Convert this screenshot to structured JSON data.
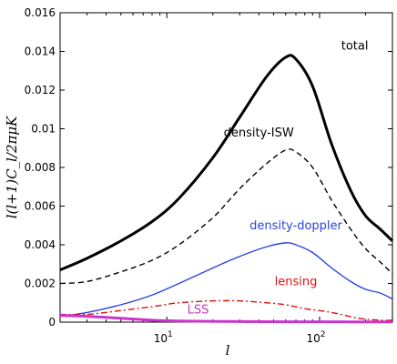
{
  "chart_data": {
    "type": "line",
    "xlabel": "l",
    "ylabel": "l(l+1)C_l/2πμK",
    "xscale": "log",
    "xlim": [
      2,
      300
    ],
    "ylim": [
      0,
      0.016
    ],
    "grid": false,
    "legend": "none",
    "y_ticks": [
      "0",
      "0.002",
      "0.004",
      "0.006",
      "0.008",
      "0.01",
      "0.012",
      "0.014",
      "0.016"
    ],
    "y_tick_values": [
      0,
      0.002,
      0.004,
      0.006,
      0.008,
      0.01,
      0.012,
      0.014,
      0.016
    ],
    "x_ticks": [
      {
        "value": 10,
        "base": "10",
        "exp": "1"
      },
      {
        "value": 100,
        "base": "10",
        "exp": "2"
      }
    ],
    "series": [
      {
        "name": "total",
        "color": "#000000",
        "style": "solid-thick",
        "x": [
          2,
          3,
          5,
          8,
          12,
          20,
          30,
          45,
          60,
          70,
          90,
          120,
          160,
          200,
          250,
          300
        ],
        "y": [
          0.0027,
          0.0033,
          0.0042,
          0.0052,
          0.0064,
          0.0085,
          0.0106,
          0.0127,
          0.0137,
          0.0136,
          0.0122,
          0.0092,
          0.0068,
          0.0055,
          0.0048,
          0.0042
        ]
      },
      {
        "name": "density-ISW",
        "color": "#000000",
        "style": "dashed",
        "x": [
          2,
          3,
          5,
          8,
          12,
          20,
          30,
          45,
          60,
          70,
          90,
          120,
          160,
          200,
          250,
          300
        ],
        "y": [
          0.002,
          0.0021,
          0.0026,
          0.0032,
          0.004,
          0.0054,
          0.0069,
          0.0082,
          0.0089,
          0.0088,
          0.008,
          0.0063,
          0.0048,
          0.0038,
          0.0031,
          0.0025
        ]
      },
      {
        "name": "density-doppler",
        "color": "#2a44e0",
        "style": "solid",
        "x": [
          2,
          3,
          5,
          8,
          12,
          20,
          30,
          45,
          60,
          70,
          90,
          120,
          160,
          200,
          250,
          300
        ],
        "y": [
          0.0003,
          0.0005,
          0.0009,
          0.0014,
          0.002,
          0.0028,
          0.0034,
          0.0039,
          0.0041,
          0.004,
          0.0036,
          0.0028,
          0.0021,
          0.0017,
          0.0015,
          0.0012
        ]
      },
      {
        "name": "lensing",
        "color": "#e01010",
        "style": "dashdot",
        "x": [
          2,
          3,
          5,
          8,
          12,
          20,
          30,
          45,
          60,
          80,
          120,
          180,
          250,
          300
        ],
        "y": [
          0.0004,
          0.0004,
          0.0006,
          0.0008,
          0.001,
          0.0011,
          0.0011,
          0.001,
          0.0009,
          0.0007,
          0.0005,
          0.0002,
          0.0001,
          0.0001
        ]
      },
      {
        "name": "LSS",
        "color": "#cc33cc",
        "style": "solid-thick",
        "x": [
          2,
          3,
          5,
          8,
          12,
          20,
          30,
          60,
          100,
          200,
          300
        ],
        "y": [
          0.00035,
          0.0003,
          0.0002,
          0.0001,
          6e-05,
          4e-05,
          3e-05,
          2e-05,
          2e-05,
          1e-05,
          1e-05
        ]
      }
    ],
    "annotations": [
      {
        "text": "total",
        "color": "#000000",
        "x": 170,
        "y": 0.0141
      },
      {
        "text": "density-ISW",
        "color": "#000000",
        "x": 40,
        "y": 0.0096
      },
      {
        "text": "density-doppler",
        "color": "#2a44e0",
        "x": 70,
        "y": 0.0048
      },
      {
        "text": "lensing",
        "color": "#e01010",
        "x": 70,
        "y": 0.0019
      },
      {
        "text": "LSS",
        "color": "#cc33cc",
        "x": 16,
        "y": 0.00045
      }
    ]
  }
}
